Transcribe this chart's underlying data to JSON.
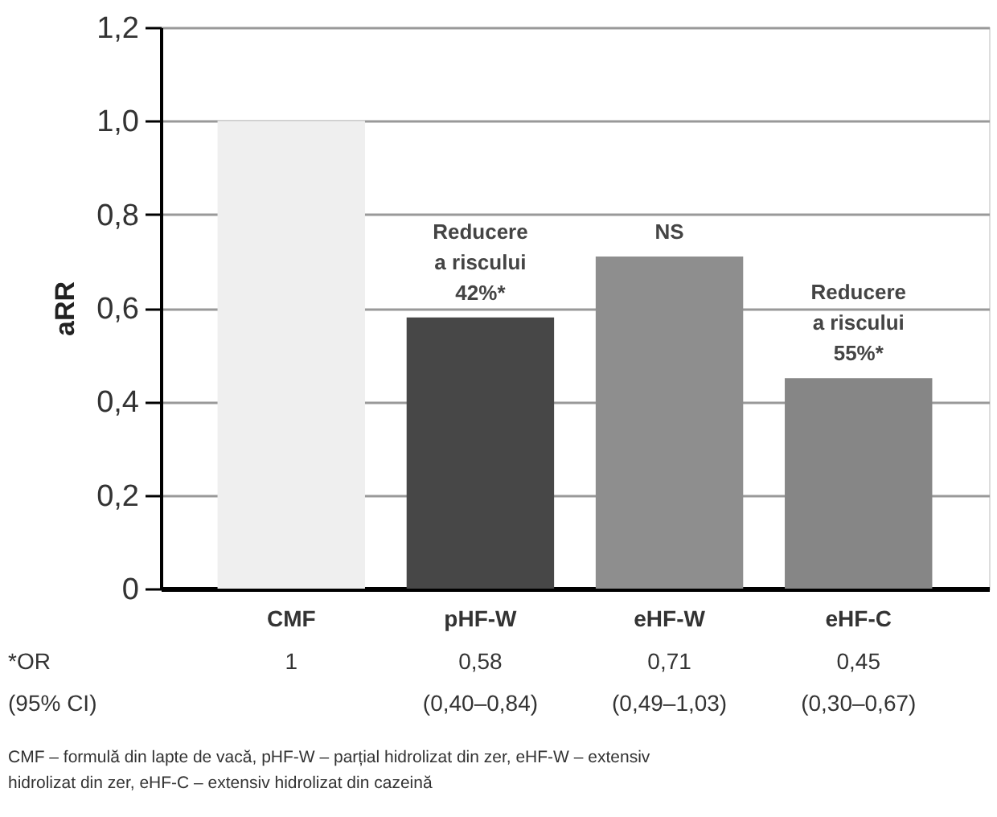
{
  "chart_data": {
    "type": "bar",
    "ylabel": "aRR",
    "categories": [
      "CMF",
      "pHF-W",
      "eHF-W",
      "eHF-C"
    ],
    "values": [
      1,
      0.58,
      0.71,
      0.45
    ],
    "colors": [
      "#efefef",
      "#474747",
      "#8e8e8e",
      "#868686"
    ],
    "value_labels": [
      "1",
      "0,58",
      "0,71",
      "0,45"
    ],
    "ylim": [
      0,
      1.2
    ],
    "yticks": [
      0,
      {
        "value": 0.2,
        "label": "0,2"
      },
      {
        "value": 0.4,
        "label": "0,4"
      },
      {
        "value": 0.6,
        "label": "0,6"
      },
      {
        "value": 0.8,
        "label": "0,8"
      },
      {
        "value": 1.0,
        "label": "1,0"
      },
      {
        "value": 1.2,
        "label": "1,2"
      }
    ],
    "grid": "y",
    "annotations": [
      {
        "text": "Reducere\na riscului\n42%*",
        "x": "pHF-W",
        "y": 0.58
      },
      {
        "text": "NS",
        "x": "eHF-W",
        "y": 0.71
      },
      {
        "text": "Reducere\na riscului\n55%*",
        "x": "eHF-C",
        "y": 0.45
      },
      "*OR",
      "(95% CI)",
      "(0,40–0,84)",
      "(0,49–1,03)",
      "(0,30–0,67)",
      "CMF – formulă din lapte de vacă, pHF-W – parțial hidrolizat din zer, eHF-W – extensiv\nhidrolizat din zer, eHF-C – extensiv hidrolizat din cazeină"
    ]
  }
}
